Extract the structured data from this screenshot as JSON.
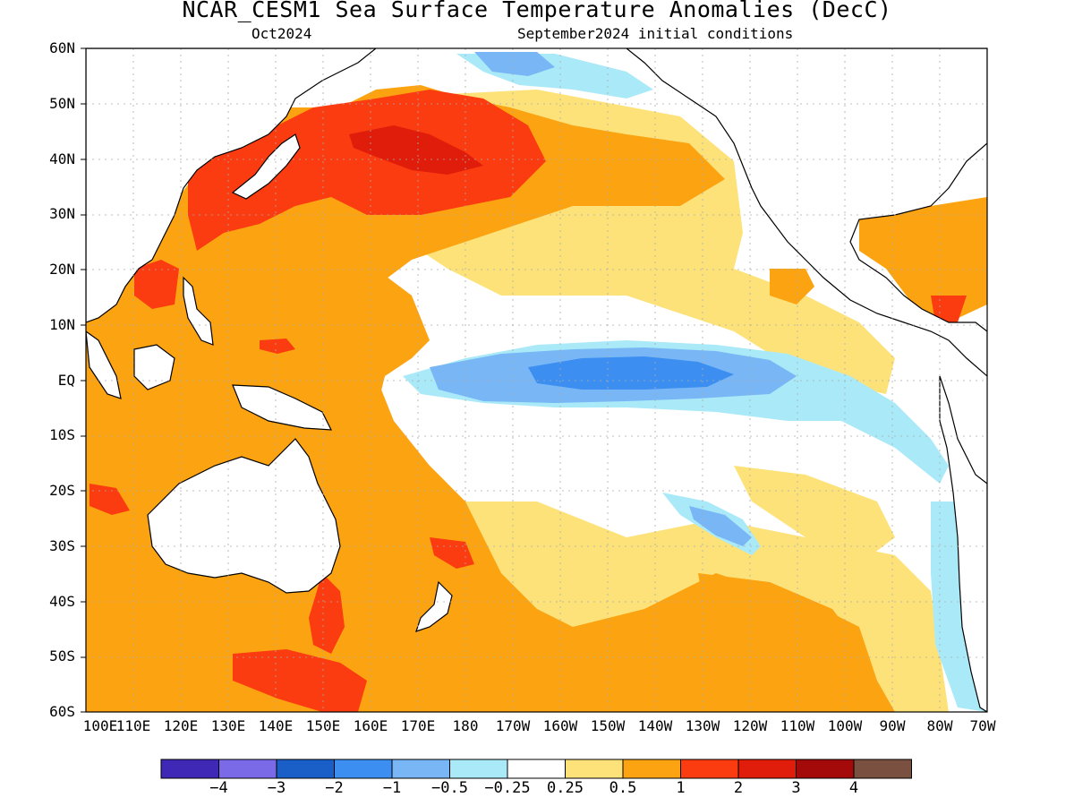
{
  "title": "NCAR_CESM1 Sea Surface Temperature Anomalies (DecC)",
  "subtitle_left": "Oct2024",
  "subtitle_right": "September2024 initial conditions",
  "lat_labels": [
    "60N",
    "50N",
    "40N",
    "30N",
    "20N",
    "10N",
    "EQ",
    "10S",
    "20S",
    "30S",
    "40S",
    "50S",
    "60S"
  ],
  "lon_labels": [
    "100E",
    "110E",
    "120E",
    "130E",
    "140E",
    "150E",
    "160E",
    "170E",
    "180",
    "170W",
    "160W",
    "150W",
    "140W",
    "130W",
    "120W",
    "110W",
    "100W",
    "90W",
    "80W",
    "70W"
  ],
  "colorbar": {
    "colors": [
      "#3f28b5",
      "#7b6ae8",
      "#1a5fc8",
      "#3c8ff0",
      "#78b6f6",
      "#aaeaf8",
      "#ffffff",
      "#fde27a",
      "#fca312",
      "#fb3b10",
      "#df1d0a",
      "#a40a0a",
      "#7a5040"
    ],
    "labels": [
      "-4",
      "-3",
      "-2",
      "-1",
      "-0.5",
      "-0.25",
      "0.25",
      "0.5",
      "1",
      "2",
      "3",
      "4"
    ]
  },
  "colors": {
    "background": "#ffffff",
    "coast": "#000000",
    "grid": "#aaaaaa"
  }
}
